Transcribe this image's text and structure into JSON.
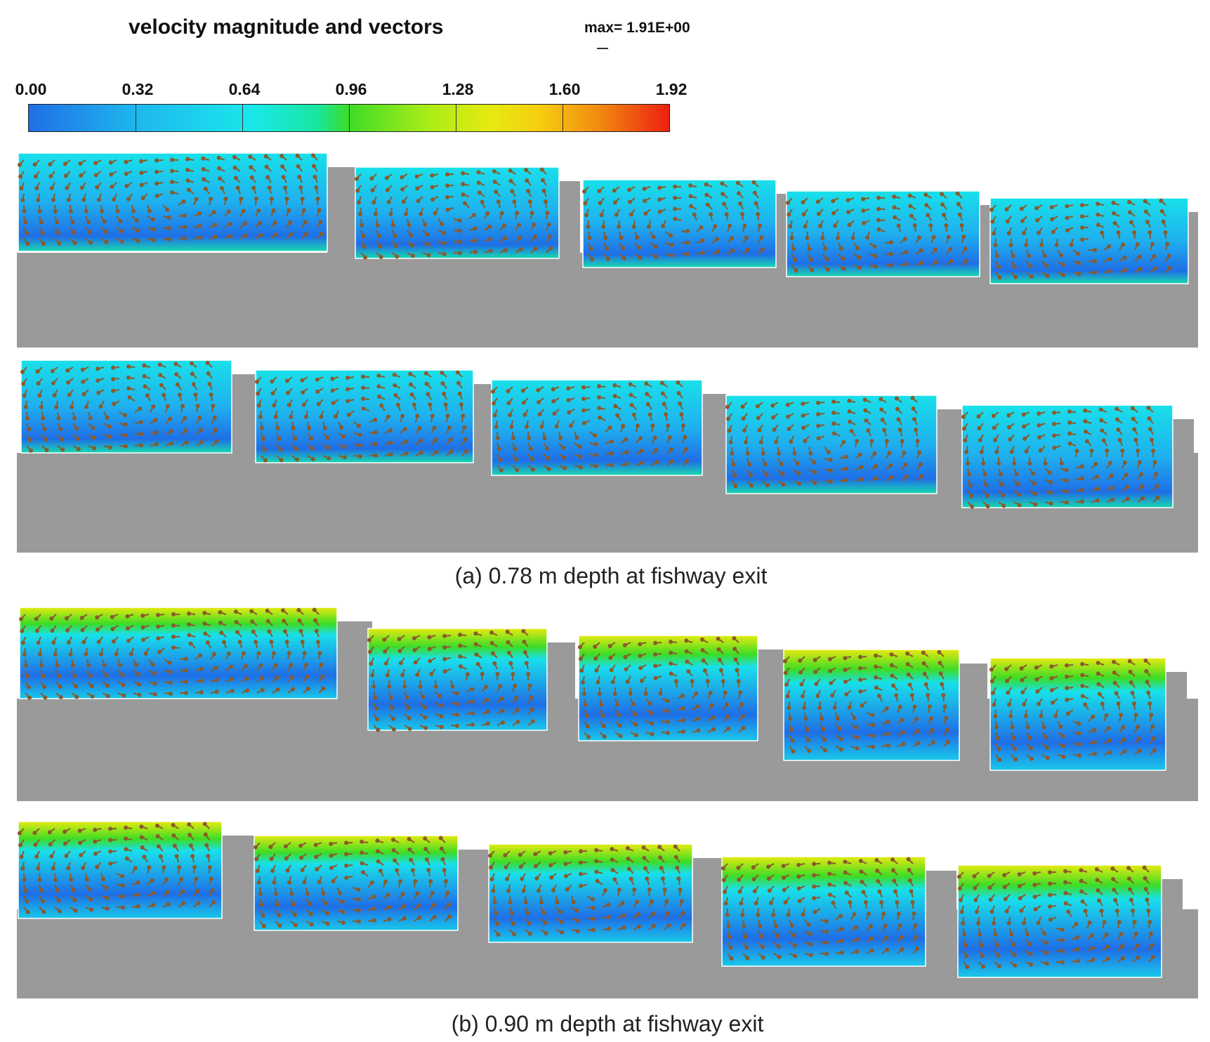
{
  "title": "velocity magnitude and vectors",
  "max_label": "max= 1.91E+00",
  "legend": {
    "ticks": [
      "0.00",
      "0.32",
      "0.64",
      "0.96",
      "1.28",
      "1.60",
      "1.92"
    ],
    "colors": [
      "#1f6fe6",
      "#1fb8ee",
      "#19e8ea",
      "#3ddc26",
      "#e6ea10",
      "#f28a10",
      "#ec2010"
    ]
  },
  "captions": {
    "a": "(a) 0.78 m depth at fishway exit",
    "b": "(b) 0.90 m depth at fishway exit"
  },
  "colors": {
    "ground": "#9a9a9a",
    "low_velocity": "#1f6fe6",
    "mid_velocity": "#19e0ea",
    "high_velocity": "#e6ea10",
    "vector": "#8b5a2b"
  }
}
